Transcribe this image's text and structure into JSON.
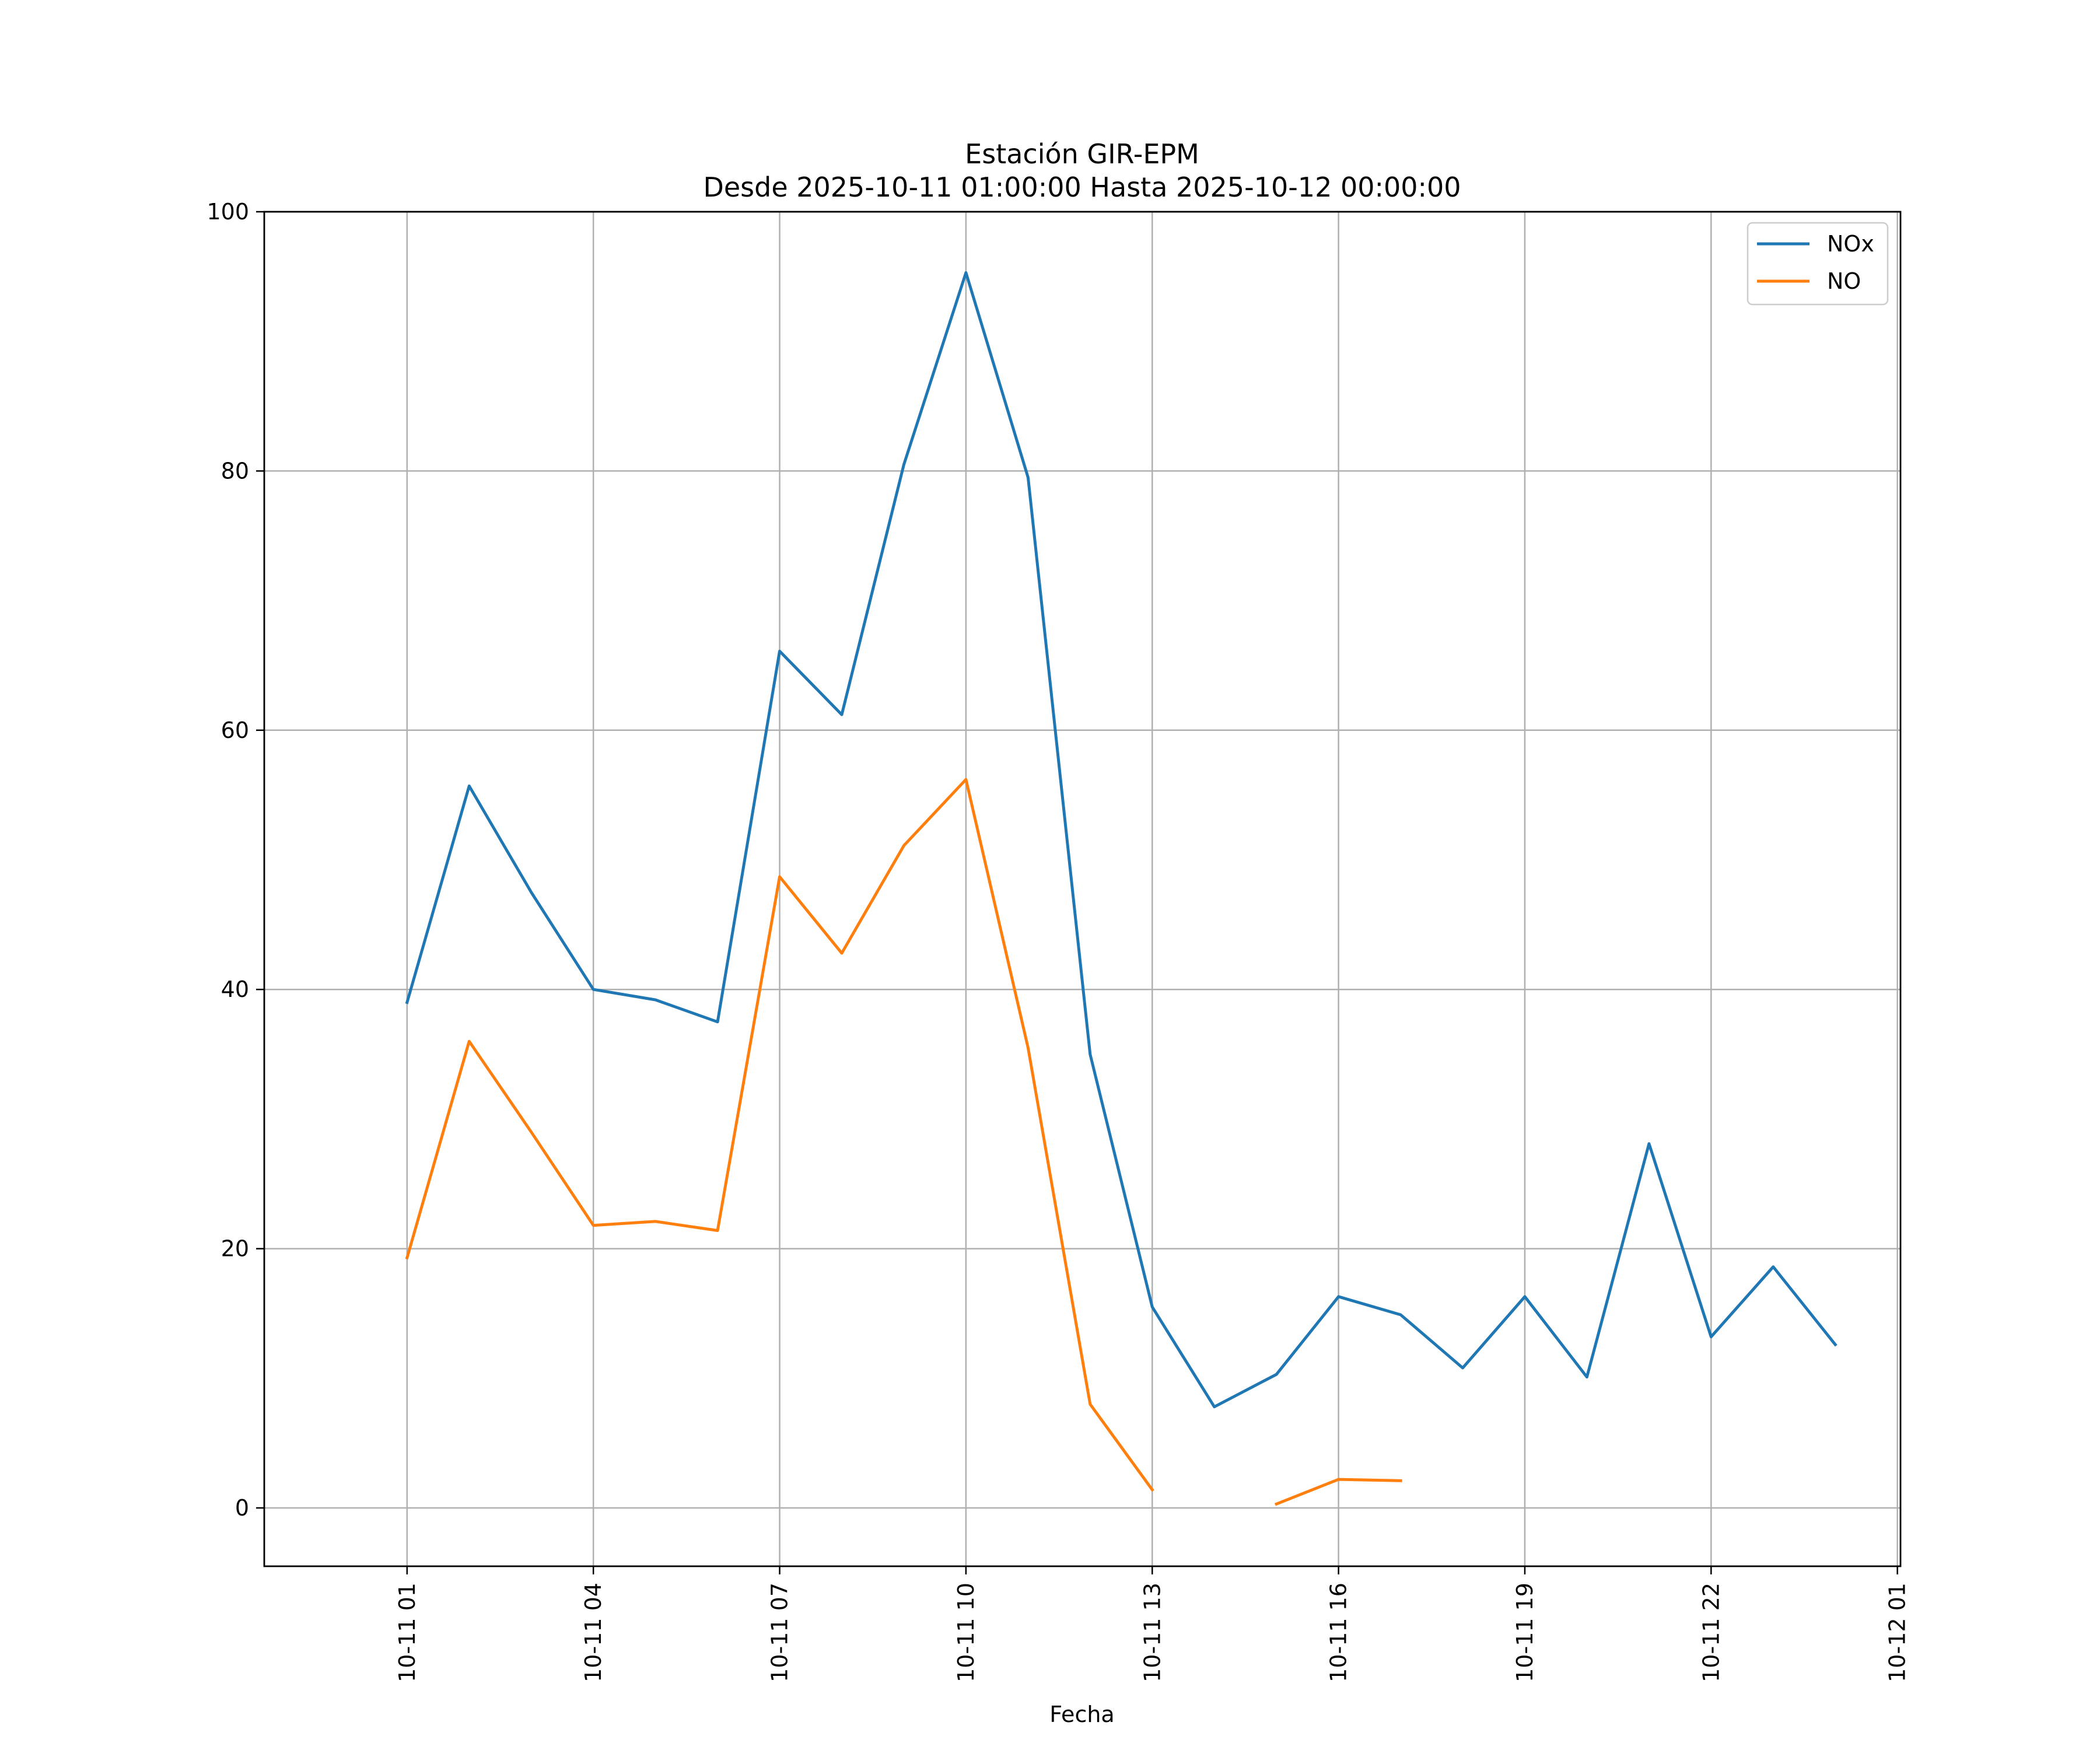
{
  "chart_data": {
    "type": "line",
    "title": "Estación GIR-EPM",
    "subtitle": "Desde 2025-10-11 01:00:00 Hasta 2025-10-12 00:00:00",
    "xlabel": "Fecha",
    "ylabel": "",
    "x": [
      "2025-10-11 01:00",
      "2025-10-11 02:00",
      "2025-10-11 03:00",
      "2025-10-11 04:00",
      "2025-10-11 05:00",
      "2025-10-11 06:00",
      "2025-10-11 07:00",
      "2025-10-11 08:00",
      "2025-10-11 09:00",
      "2025-10-11 10:00",
      "2025-10-11 11:00",
      "2025-10-11 12:00",
      "2025-10-11 13:00",
      "2025-10-11 14:00",
      "2025-10-11 15:00",
      "2025-10-11 16:00",
      "2025-10-11 17:00",
      "2025-10-11 18:00",
      "2025-10-11 19:00",
      "2025-10-11 20:00",
      "2025-10-11 21:00",
      "2025-10-11 22:00",
      "2025-10-11 23:00",
      "2025-10-12 00:00"
    ],
    "series": [
      {
        "name": "NOx",
        "color": "#1f77b4",
        "values": [
          39.0,
          55.7,
          47.5,
          40.0,
          39.2,
          37.5,
          66.1,
          61.2,
          80.5,
          95.3,
          79.5,
          35.0,
          15.5,
          7.8,
          10.3,
          16.3,
          14.9,
          10.8,
          16.3,
          10.1,
          28.1,
          13.2,
          18.6,
          12.6
        ]
      },
      {
        "name": "NO",
        "color": "#ff7f0e",
        "values": [
          19.3,
          36.0,
          29.0,
          21.8,
          22.1,
          21.4,
          48.7,
          42.8,
          51.1,
          56.2,
          35.5,
          8.0,
          1.4,
          null,
          0.3,
          2.2,
          2.1,
          null,
          null,
          null,
          null,
          null,
          null,
          null
        ]
      }
    ],
    "xticks": [
      "2025-10-11 01:00",
      "2025-10-11 04:00",
      "2025-10-11 07:00",
      "2025-10-11 10:00",
      "2025-10-11 13:00",
      "2025-10-11 16:00",
      "2025-10-11 19:00",
      "2025-10-11 22:00",
      "2025-10-12 01:00"
    ],
    "xtick_labels": [
      "10-11 01",
      "10-11 04",
      "10-11 07",
      "10-11 10",
      "10-11 13",
      "10-11 16",
      "10-11 19",
      "10-11 22",
      "10-12 01"
    ],
    "yticks": [
      0,
      20,
      40,
      60,
      80,
      100
    ],
    "ytick_labels": [
      "0",
      "20",
      "40",
      "60",
      "80",
      "100"
    ],
    "xlim": [
      "2025-10-10 22:42",
      "2025-10-12 01:03"
    ],
    "ylim": [
      -4.5,
      100
    ],
    "grid": true,
    "legend_position": "top-right"
  }
}
